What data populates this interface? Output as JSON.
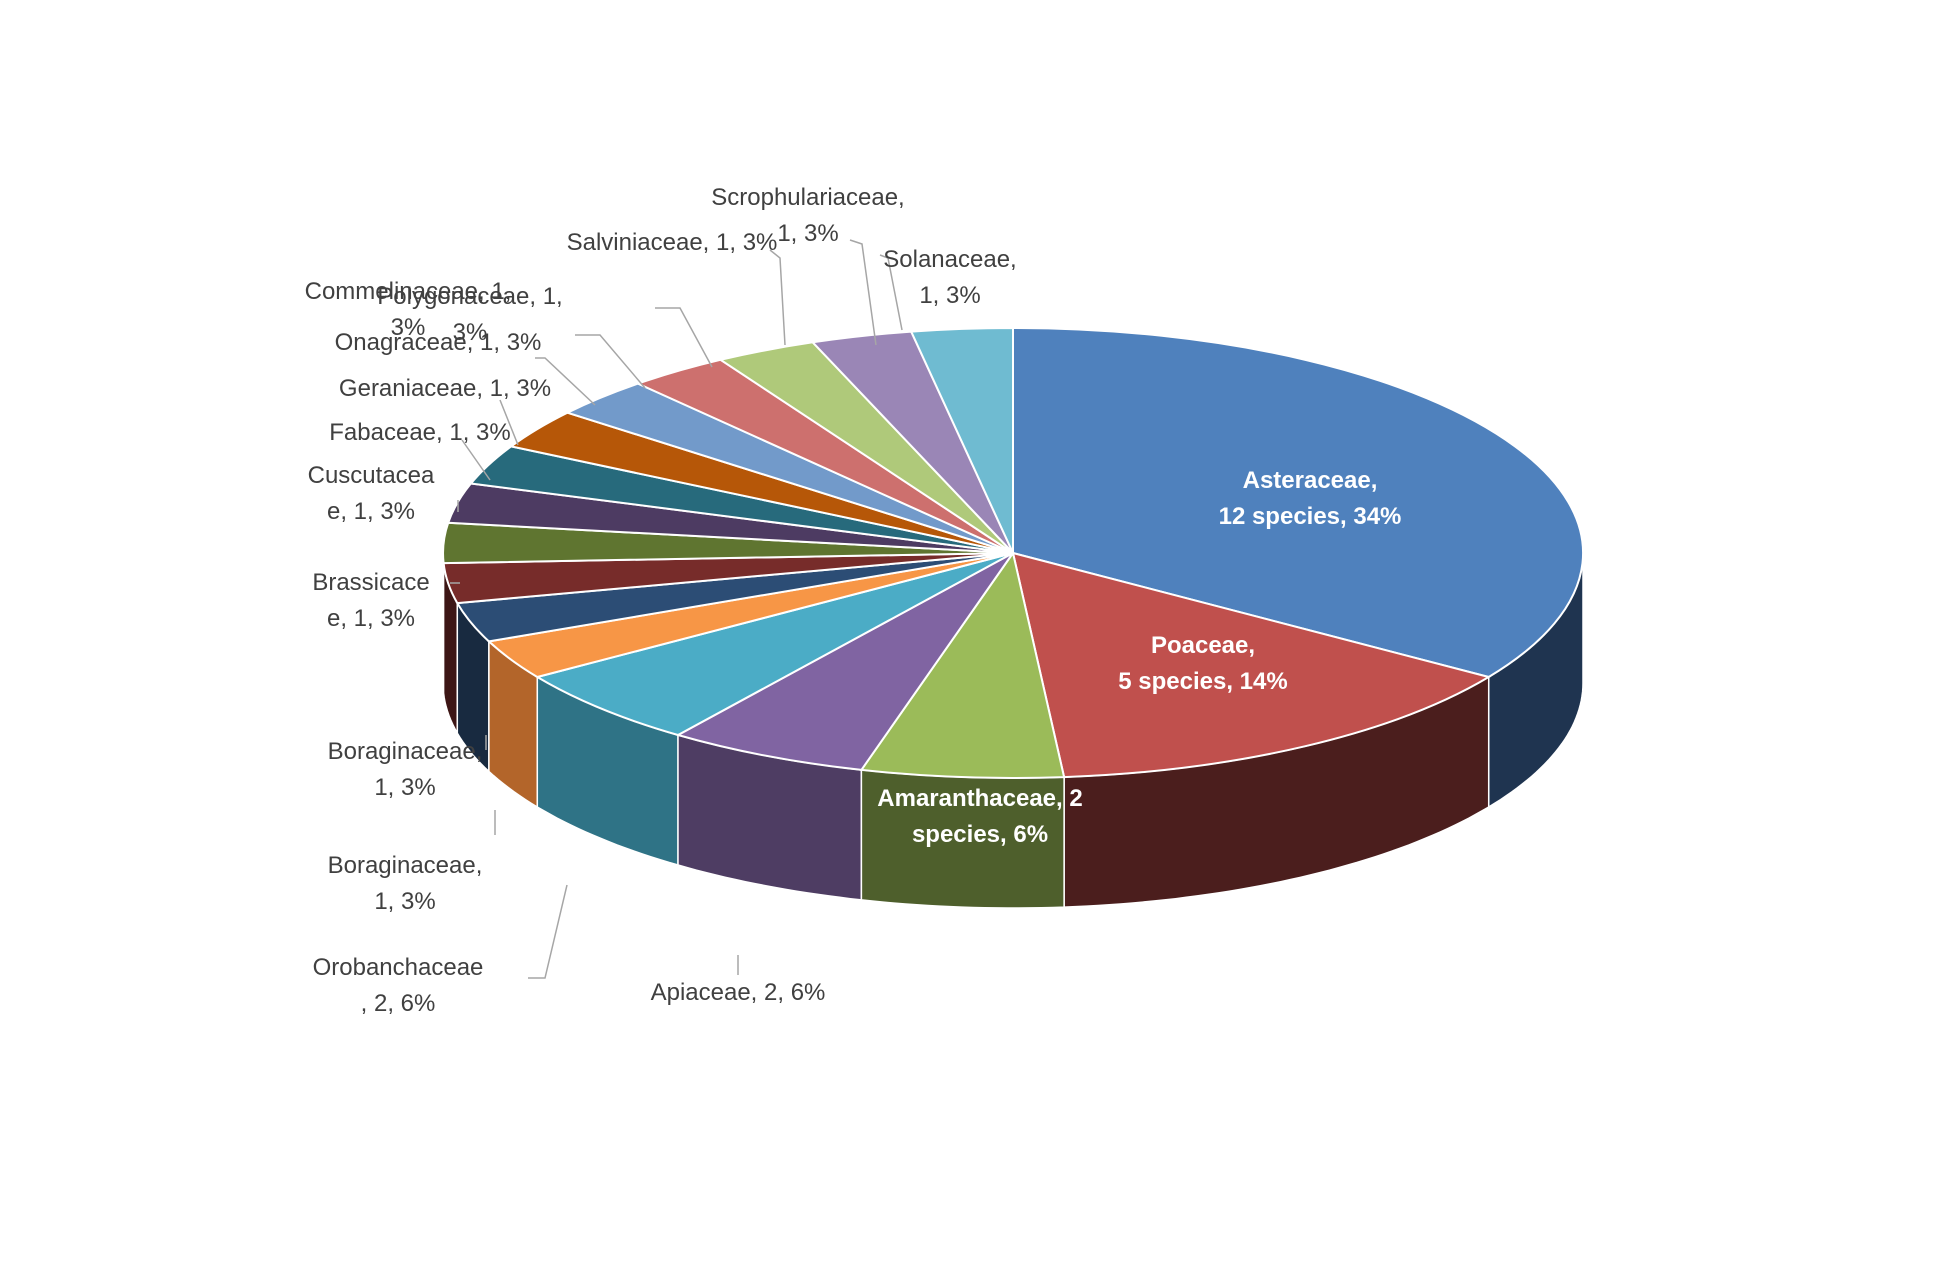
{
  "chart_data": {
    "type": "pie",
    "style": "3d",
    "legend": "none",
    "title": "",
    "slices": [
      {
        "lines": [
          "Asteraceae,",
          "12 species, 34%"
        ],
        "value": 12,
        "percent": 34,
        "color": "#4f81bd",
        "dark": "#1f3450",
        "inside": true
      },
      {
        "lines": [
          "Poaceae,",
          "5 species, 14%"
        ],
        "value": 5,
        "percent": 14,
        "color": "#c0504d",
        "dark": "#4b1e1d",
        "inside": true
      },
      {
        "lines": [
          "Amaranthaceae, 2",
          "species, 6%"
        ],
        "value": 2,
        "percent": 6,
        "color": "#9bbb59",
        "dark": "#4e5f2c",
        "inside": true
      },
      {
        "lines": [
          "Apiaceae, 2, 6%"
        ],
        "value": 2,
        "percent": 6,
        "color": "#8064a2",
        "dark": "#4e3d63",
        "inside": false
      },
      {
        "lines": [
          "Orobanchaceae",
          ", 2, 6%"
        ],
        "value": 2,
        "percent": 6,
        "color": "#4bacc6",
        "dark": "#2f7386",
        "inside": false
      },
      {
        "lines": [
          "Boraginaceae,",
          "1, 3%"
        ],
        "value": 1,
        "percent": 3,
        "color": "#f79646",
        "dark": "#b3652a",
        "inside": false
      },
      {
        "lines": [
          "Boraginaceae,",
          "1, 3%"
        ],
        "value": 1,
        "percent": 3,
        "color": "#2c4d75",
        "dark": "#182a40",
        "inside": false
      },
      {
        "lines": [
          "Brassicace",
          "e, 1, 3%"
        ],
        "value": 1,
        "percent": 3,
        "color": "#772c2a",
        "dark": "#3d1615",
        "inside": false
      },
      {
        "lines": [
          "Cuscutacea",
          "e, 1, 3%"
        ],
        "value": 1,
        "percent": 3,
        "color": "#5f7530",
        "dark": "#323e19",
        "inside": false
      },
      {
        "lines": [
          "Fabaceae, 1, 3%"
        ],
        "value": 1,
        "percent": 3,
        "color": "#4d3b62",
        "dark": "#271e33",
        "inside": false
      },
      {
        "lines": [
          "Geraniaceae, 1, 3%"
        ],
        "value": 1,
        "percent": 3,
        "color": "#276a7c",
        "dark": "#143640",
        "inside": false
      },
      {
        "lines": [
          "Onagraceae, 1, 3%"
        ],
        "value": 1,
        "percent": 3,
        "color": "#b65708",
        "dark": "#5e2d04",
        "inside": false
      },
      {
        "lines": [
          "Commelinaceae, 1,",
          "3%"
        ],
        "value": 1,
        "percent": 3,
        "color": "#729aca",
        "dark": "#3b5068",
        "inside": false
      },
      {
        "lines": [
          "Polygonaceae, 1,",
          "3%"
        ],
        "value": 1,
        "percent": 3,
        "color": "#cd706e",
        "dark": "#6a3a39",
        "inside": false
      },
      {
        "lines": [
          "Salviniaceae, 1, 3%"
        ],
        "value": 1,
        "percent": 3,
        "color": "#afc97a",
        "dark": "#5a6840",
        "inside": false
      },
      {
        "lines": [
          "Scrophulariaceae,",
          "1, 3%"
        ],
        "value": 1,
        "percent": 3,
        "color": "#9a86b6",
        "dark": "#4f455e",
        "inside": false
      },
      {
        "lines": [
          "Solanaceae,",
          "1, 3%"
        ],
        "value": 1,
        "percent": 3,
        "color": "#6fbbd1",
        "dark": "#39606c",
        "inside": false
      }
    ]
  }
}
